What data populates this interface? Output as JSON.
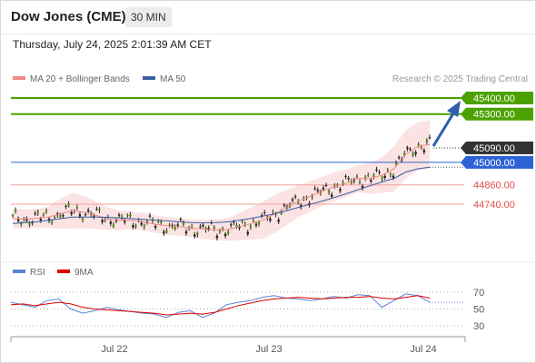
{
  "header": {
    "symbol": "Dow Jones (CME)",
    "timeframe": "30 MIN",
    "datetime": "Thursday, July 24, 2025 2:01:39 AM CET"
  },
  "legend": {
    "ma20": "MA 20 + Bollinger Bands",
    "ma50": "MA 50",
    "credit": "Research © 2025 Trading Central",
    "colors": {
      "ma20": "#f08a8a",
      "ma50": "#3b5fa0"
    }
  },
  "levels": [
    {
      "label": "45400.00",
      "value": 45400,
      "kind": "target",
      "color": "#4ca100"
    },
    {
      "label": "45300.00",
      "value": 45300,
      "kind": "target",
      "color": "#4ca100"
    },
    {
      "label": "45090.00",
      "value": 45090,
      "kind": "last",
      "color": "#333333"
    },
    {
      "label": "45000.00",
      "value": 45000,
      "kind": "pivot",
      "color": "#2c62d6"
    },
    {
      "label": "44860.00",
      "value": 44860,
      "kind": "support",
      "color": "#e24a4a"
    },
    {
      "label": "44740.00",
      "value": 44740,
      "kind": "support",
      "color": "#e24a4a"
    }
  ],
  "rsi_legend": {
    "rsi": "RSI",
    "ma": "9MA",
    "colors": {
      "rsi": "#5a83d6",
      "ma": "#e00000"
    }
  },
  "rsi_ticks": [
    "70",
    "50",
    "30"
  ],
  "x_labels": [
    "Jul 22",
    "Jul 23",
    "Jul 24"
  ],
  "chart_data": {
    "type": "candlestick",
    "title": "",
    "y_range": [
      44480,
      45480
    ],
    "series": [
      {
        "name": "MA 20 + Bollinger Bands",
        "values": [
          44650,
          44648,
          44652,
          44660,
          44680,
          44700,
          44690,
          44670,
          44650,
          44640,
          44640,
          44630,
          44615,
          44605,
          44600,
          44590,
          44585,
          44580,
          44582,
          44600,
          44620,
          44640,
          44680,
          44720,
          44760,
          44790,
          44820,
          44850,
          44870,
          44900,
          44900,
          44920,
          44960,
          45050,
          45100,
          45110
        ]
      },
      {
        "name": "MA 50",
        "values": [
          44620,
          44625,
          44630,
          44640,
          44650,
          44660,
          44660,
          44660,
          44658,
          44655,
          44650,
          44645,
          44640,
          44636,
          44630,
          44626,
          44624,
          44626,
          44630,
          44640,
          44652,
          44666,
          44680,
          44700,
          44720,
          44740,
          44760,
          44782,
          44805,
          44830,
          44855,
          44878,
          44900,
          44940,
          44960,
          44970
        ]
      }
    ],
    "rsi": {
      "range": [
        20,
        80
      ],
      "rsi": [
        58,
        55,
        52,
        60,
        62,
        50,
        45,
        48,
        52,
        49,
        47,
        45,
        44,
        40,
        46,
        48,
        40,
        45,
        55,
        58,
        60,
        64,
        66,
        63,
        62,
        60,
        62,
        65,
        63,
        67,
        66,
        52,
        60,
        68,
        66,
        58
      ],
      "ma9": [
        55,
        56,
        54,
        56,
        58,
        56,
        52,
        50,
        49,
        48,
        47,
        46,
        45,
        43,
        44,
        45,
        44,
        46,
        50,
        54,
        57,
        60,
        62,
        63,
        64,
        63,
        62,
        63,
        64,
        64,
        65,
        63,
        62,
        64,
        66,
        63
      ]
    }
  }
}
